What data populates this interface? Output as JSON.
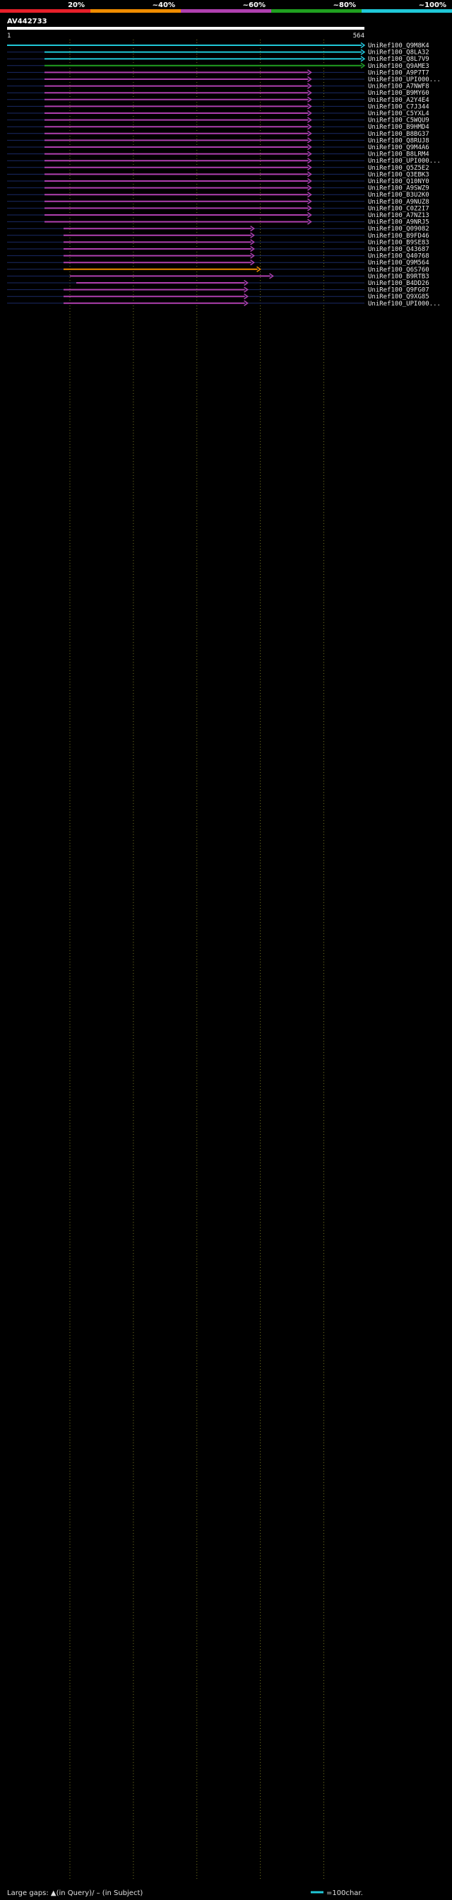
{
  "chart_data": {
    "type": "alignment-map",
    "title": "AV442733",
    "query_range": [
      1,
      564
    ],
    "query_start_label": "1",
    "query_end_label": "564",
    "identity_legend": [
      {
        "label": "20%",
        "color": "#e8202a"
      },
      {
        "label": "~40%",
        "color": "#f08c00"
      },
      {
        "label": "~60%",
        "color": "#b040b0"
      },
      {
        "label": "~80%",
        "color": "#20a020"
      },
      {
        "label": "~100%",
        "color": "#20c8d8"
      }
    ],
    "series": [
      {
        "name": "UniRef100_Q9M8K4",
        "start": 1,
        "end": 564,
        "color": "#20c8d8"
      },
      {
        "name": "UniRef100_Q8LA32",
        "start": 60,
        "end": 564,
        "color": "#20c8d8"
      },
      {
        "name": "UniRef100_Q8L7V9",
        "start": 60,
        "end": 564,
        "color": "#20c8d8"
      },
      {
        "name": "UniRef100_Q9AME3",
        "start": 60,
        "end": 564,
        "color": "#20a020"
      },
      {
        "name": "UniRef100_A9P7T7",
        "start": 60,
        "end": 480,
        "color": "#b040b0"
      },
      {
        "name": "UniRef100_UPI000...",
        "start": 60,
        "end": 480,
        "color": "#b040b0"
      },
      {
        "name": "UniRef100_A7NWF8",
        "start": 60,
        "end": 480,
        "color": "#b040b0"
      },
      {
        "name": "UniRef100_B9MY60",
        "start": 60,
        "end": 480,
        "color": "#b040b0"
      },
      {
        "name": "UniRef100_A2Y4E4",
        "start": 60,
        "end": 480,
        "color": "#b040b0"
      },
      {
        "name": "UniRef100_C7J344",
        "start": 60,
        "end": 480,
        "color": "#b040b0"
      },
      {
        "name": "UniRef100_C5YXL4",
        "start": 60,
        "end": 480,
        "color": "#b040b0"
      },
      {
        "name": "UniRef100_C5WQU9",
        "start": 60,
        "end": 480,
        "color": "#b040b0"
      },
      {
        "name": "UniRef100_B9HMD4",
        "start": 60,
        "end": 480,
        "color": "#b040b0"
      },
      {
        "name": "UniRef100_B8BG37",
        "start": 60,
        "end": 480,
        "color": "#b040b0"
      },
      {
        "name": "UniRef100_Q8RUJ8",
        "start": 60,
        "end": 480,
        "color": "#b040b0"
      },
      {
        "name": "UniRef100_Q9M4A6",
        "start": 60,
        "end": 480,
        "color": "#b040b0"
      },
      {
        "name": "UniRef100_B8LRM4",
        "start": 60,
        "end": 480,
        "color": "#b040b0"
      },
      {
        "name": "UniRef100_UPI000...",
        "start": 60,
        "end": 480,
        "color": "#b040b0"
      },
      {
        "name": "UniRef100_Q5Z5E2",
        "start": 60,
        "end": 480,
        "color": "#b040b0"
      },
      {
        "name": "UniRef100_Q3EBK3",
        "start": 60,
        "end": 480,
        "color": "#b040b0"
      },
      {
        "name": "UniRef100_Q10NY0",
        "start": 60,
        "end": 480,
        "color": "#b040b0"
      },
      {
        "name": "UniRef100_A9SWZ9",
        "start": 60,
        "end": 480,
        "color": "#b040b0"
      },
      {
        "name": "UniRef100_B3U2K0",
        "start": 60,
        "end": 480,
        "color": "#b040b0"
      },
      {
        "name": "UniRef100_A9NUZ8",
        "start": 60,
        "end": 480,
        "color": "#b040b0"
      },
      {
        "name": "UniRef100_C0Z2I7",
        "start": 60,
        "end": 480,
        "color": "#b040b0"
      },
      {
        "name": "UniRef100_A7NZ13",
        "start": 60,
        "end": 480,
        "color": "#b040b0"
      },
      {
        "name": "UniRef100_A9NRJ5",
        "start": 60,
        "end": 480,
        "color": "#b040b0"
      },
      {
        "name": "UniRef100_Q09082",
        "start": 90,
        "end": 390,
        "color": "#b040b0"
      },
      {
        "name": "UniRef100_B9FD46",
        "start": 90,
        "end": 390,
        "color": "#b040b0"
      },
      {
        "name": "UniRef100_B9SE83",
        "start": 90,
        "end": 390,
        "color": "#b040b0"
      },
      {
        "name": "UniRef100_Q43687",
        "start": 90,
        "end": 390,
        "color": "#b040b0"
      },
      {
        "name": "UniRef100_Q40768",
        "start": 90,
        "end": 390,
        "color": "#b040b0"
      },
      {
        "name": "UniRef100_Q9M564",
        "start": 90,
        "end": 390,
        "color": "#b040b0"
      },
      {
        "name": "UniRef100_Q6S760",
        "start": 90,
        "end": 400,
        "color": "#f08c00"
      },
      {
        "name": "UniRef100_B9RTB3",
        "start": 100,
        "end": 420,
        "color": "#b040b0"
      },
      {
        "name": "UniRef100_B4DD26",
        "start": 110,
        "end": 380,
        "color": "#b040b0"
      },
      {
        "name": "UniRef100_Q9FG07",
        "start": 90,
        "end": 380,
        "color": "#b040b0"
      },
      {
        "name": "UniRef100_Q9XG85",
        "start": 90,
        "end": 380,
        "color": "#b040b0"
      },
      {
        "name": "UniRef100_UPI000...",
        "start": 90,
        "end": 380,
        "color": "#b040b0"
      }
    ],
    "series_more_not_enumerated": 0,
    "footer": {
      "large_gaps_label": "Large gaps: ▲(in Query)/ – (in Subject)",
      "scale_label": "=100char."
    }
  }
}
